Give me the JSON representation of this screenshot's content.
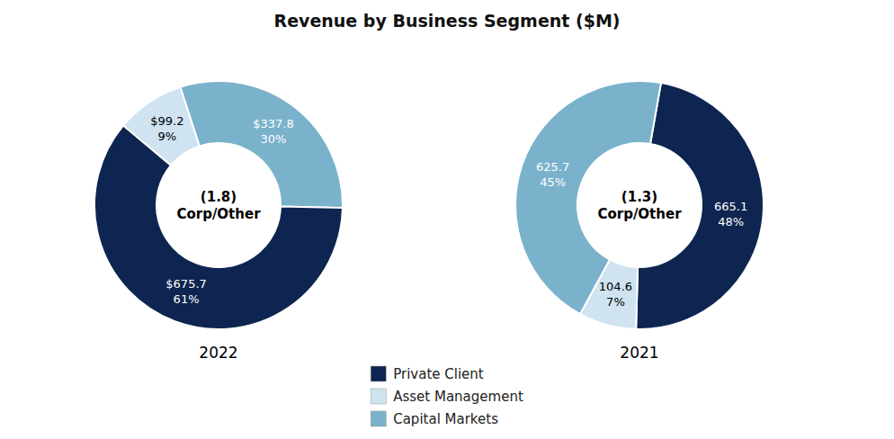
{
  "chart_data": [
    {
      "type": "donut",
      "title": "Revenue by Business Segment ($M)",
      "subtitle": "2022",
      "annotations": [
        "(1.8)\nCorp/Other"
      ],
      "categories": [
        "Capital Markets",
        "Private Client",
        "Asset Management"
      ],
      "values": [
        337.8,
        675.7,
        99.2
      ],
      "value_labels": [
        "$337.8\n30%",
        "$675.7\n61%",
        "$99.2\n9%"
      ],
      "colors": [
        "#7ab2cc",
        "#0d2550",
        "#cfe3f0"
      ],
      "data_labels": true
    },
    {
      "type": "donut",
      "subtitle": "2021",
      "annotations": [
        "(1.3)\nCorp/Other"
      ],
      "categories": [
        "Private Client",
        "Asset Management",
        "Capital Markets"
      ],
      "values": [
        665.1,
        104.6,
        625.7
      ],
      "value_labels": [
        "665.1\n48%",
        "104.6\n7%",
        "625.7\n45%"
      ],
      "colors": [
        "#0d2550",
        "#cfe3f0",
        "#7ab2cc"
      ],
      "data_labels": true,
      "legend": "bottom"
    }
  ]
}
